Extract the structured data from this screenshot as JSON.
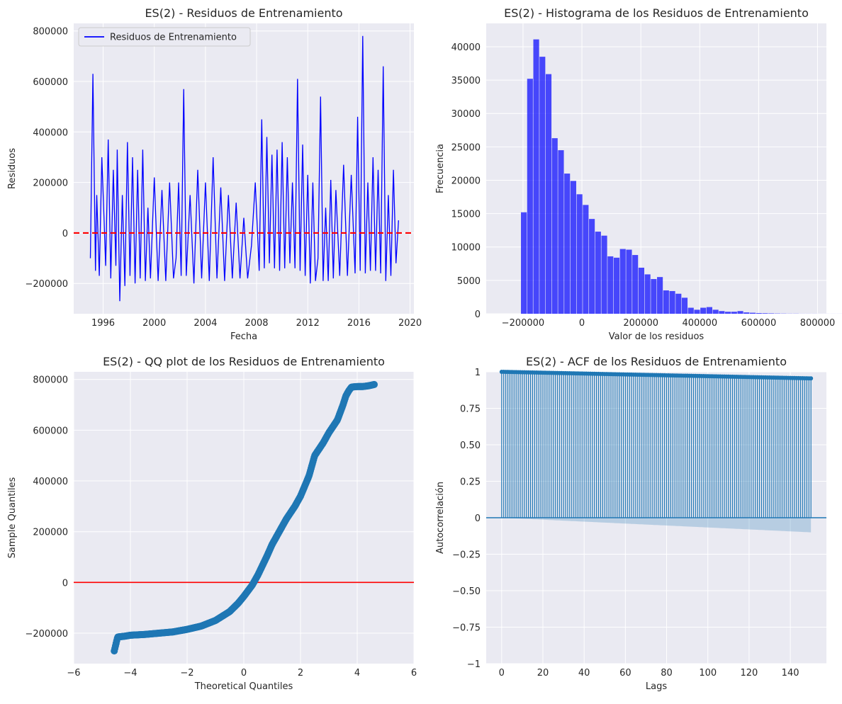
{
  "chart_data": [
    {
      "type": "line",
      "title": "ES(2) - Residuos de Entrenamiento",
      "xlabel": "Fecha",
      "ylabel": "Residuos",
      "xlim": [
        1993.7,
        2020.3
      ],
      "ylim": [
        -320000,
        830000
      ],
      "xticks": [
        1996,
        2000,
        2004,
        2008,
        2012,
        2016,
        2020
      ],
      "yticks": [
        -200000,
        0,
        200000,
        400000,
        600000,
        800000
      ],
      "grid": true,
      "legend": "top-left",
      "series": [
        {
          "name": "Residuos de Entrenamiento",
          "color": "#0000ff",
          "x": [
            1995.0,
            1995.2,
            1995.4,
            1995.5,
            1995.7,
            1995.9,
            1996.2,
            1996.4,
            1996.6,
            1996.8,
            1997.0,
            1997.1,
            1997.3,
            1997.5,
            1997.7,
            1997.9,
            1998.1,
            1998.3,
            1998.5,
            1998.7,
            1998.9,
            1999.1,
            1999.3,
            1999.5,
            1999.7,
            2000.0,
            2000.3,
            2000.6,
            2000.9,
            2001.2,
            2001.5,
            2001.7,
            2001.9,
            2002.1,
            2002.3,
            2002.5,
            2002.8,
            2003.1,
            2003.4,
            2003.7,
            2004.0,
            2004.3,
            2004.6,
            2004.9,
            2005.2,
            2005.5,
            2005.8,
            2006.1,
            2006.4,
            2006.7,
            2007.0,
            2007.3,
            2007.6,
            2007.9,
            2008.2,
            2008.4,
            2008.6,
            2008.8,
            2009.0,
            2009.2,
            2009.4,
            2009.6,
            2009.8,
            2010.0,
            2010.2,
            2010.4,
            2010.6,
            2010.8,
            2011.0,
            2011.2,
            2011.4,
            2011.6,
            2011.8,
            2012.0,
            2012.2,
            2012.4,
            2012.6,
            2012.8,
            2013.0,
            2013.2,
            2013.4,
            2013.6,
            2013.8,
            2014.0,
            2014.2,
            2014.5,
            2014.8,
            2015.1,
            2015.4,
            2015.7,
            2015.9,
            2016.1,
            2016.3,
            2016.5,
            2016.7,
            2016.9,
            2017.1,
            2017.3,
            2017.5,
            2017.7,
            2017.9,
            2018.1,
            2018.3,
            2018.5,
            2018.7,
            2018.9,
            2019.1
          ],
          "values": [
            -100000,
            630000,
            -150000,
            150000,
            -170000,
            300000,
            -130000,
            370000,
            -180000,
            250000,
            -130000,
            330000,
            -270000,
            150000,
            -210000,
            360000,
            -170000,
            300000,
            -200000,
            250000,
            -180000,
            330000,
            -190000,
            100000,
            -180000,
            220000,
            -190000,
            170000,
            -190000,
            200000,
            -180000,
            -100000,
            200000,
            -170000,
            570000,
            -170000,
            150000,
            -200000,
            250000,
            -180000,
            200000,
            -190000,
            300000,
            -180000,
            180000,
            -190000,
            150000,
            -180000,
            120000,
            -180000,
            60000,
            -180000,
            -50000,
            200000,
            -150000,
            450000,
            -140000,
            380000,
            -120000,
            310000,
            -140000,
            330000,
            -150000,
            360000,
            -140000,
            300000,
            -120000,
            200000,
            -140000,
            610000,
            -150000,
            350000,
            -170000,
            230000,
            -200000,
            200000,
            -190000,
            -100000,
            540000,
            -190000,
            100000,
            -190000,
            210000,
            -180000,
            170000,
            -170000,
            270000,
            -170000,
            230000,
            -160000,
            460000,
            -150000,
            780000,
            -160000,
            200000,
            -150000,
            300000,
            -150000,
            250000,
            -160000,
            660000,
            -190000,
            150000,
            -170000,
            250000,
            -120000,
            50000
          ]
        },
        {
          "name": "",
          "color": "#ff0000",
          "style": "dashed",
          "x": [
            1993.7,
            2020.3
          ],
          "values": [
            0,
            0
          ]
        }
      ]
    },
    {
      "type": "bar",
      "title": "ES(2) - Histograma de los Residuos de Entrenamiento",
      "xlabel": "Valor de los residuos",
      "ylabel": "Frecuencia",
      "xlim": [
        -325000,
        830000
      ],
      "ylim": [
        0,
        43500
      ],
      "xticks": [
        -200000,
        0,
        200000,
        400000,
        600000,
        800000
      ],
      "yticks": [
        0,
        5000,
        10000,
        15000,
        20000,
        25000,
        30000,
        35000,
        40000
      ],
      "grid": true,
      "color": "#0000ff",
      "bin_start": -270000,
      "bin_width": 21000,
      "values": [
        0,
        0,
        0,
        15200,
        35200,
        41100,
        38500,
        35900,
        26300,
        24500,
        21000,
        19900,
        17900,
        16300,
        14200,
        12300,
        11700,
        8600,
        8400,
        9700,
        9600,
        8800,
        6900,
        5900,
        5200,
        5500,
        3500,
        3400,
        3000,
        2400,
        900,
        600,
        900,
        1000,
        600,
        400,
        300,
        300,
        400,
        200,
        150,
        100,
        80,
        60,
        40,
        30,
        20,
        20,
        10,
        10,
        10,
        5,
        5,
        5,
        5
      ]
    },
    {
      "type": "scatter",
      "title": "ES(2) - QQ plot de los Residuos de Entrenamiento",
      "xlabel": "Theoretical Quantiles",
      "ylabel": "Sample Quantiles",
      "xlim": [
        -6,
        6
      ],
      "ylim": [
        -320000,
        830000
      ],
      "xticks": [
        -6,
        -4,
        -2,
        0,
        2,
        4,
        6
      ],
      "yticks": [
        -200000,
        0,
        200000,
        400000,
        600000,
        800000
      ],
      "grid": true,
      "point_color": "#1f77b4",
      "reference_line": {
        "y": 0,
        "color": "#ff0000"
      },
      "x": [
        -4.57,
        -4.45,
        -4.2,
        -4.0,
        -3.5,
        -3.0,
        -2.5,
        -2.0,
        -1.5,
        -1.0,
        -0.5,
        -0.2,
        0.0,
        0.3,
        0.5,
        0.8,
        1.0,
        1.2,
        1.5,
        1.8,
        2.0,
        2.3,
        2.5,
        2.8,
        3.0,
        3.3,
        3.5,
        3.6,
        3.7,
        3.8,
        4.0,
        4.2,
        4.4,
        4.6
      ],
      "values": [
        -270000,
        -215000,
        -212000,
        -208000,
        -205000,
        -200000,
        -195000,
        -185000,
        -172000,
        -150000,
        -115000,
        -82000,
        -55000,
        -10000,
        30000,
        100000,
        150000,
        190000,
        250000,
        300000,
        340000,
        420000,
        500000,
        550000,
        590000,
        640000,
        700000,
        735000,
        755000,
        770000,
        772000,
        772000,
        775000,
        780000
      ]
    },
    {
      "type": "bar",
      "title": "ES(2) - ACF de los Residuos de Entrenamiento",
      "xlabel": "Lags",
      "ylabel": "Autocorrelación",
      "xlim": [
        -7.5,
        157.5
      ],
      "ylim": [
        -1.0,
        1.0
      ],
      "xticks": [
        0,
        20,
        40,
        60,
        80,
        100,
        120,
        140
      ],
      "yticks": [
        -1.0,
        -0.75,
        -0.5,
        -0.25,
        0.0,
        0.25,
        0.5,
        0.75,
        1.0
      ],
      "grid": true,
      "color": "#1f77b4",
      "lags_max": 150,
      "acf_start": 1.0,
      "acf_end": 0.955,
      "confidence_band_end": 0.1
    }
  ]
}
